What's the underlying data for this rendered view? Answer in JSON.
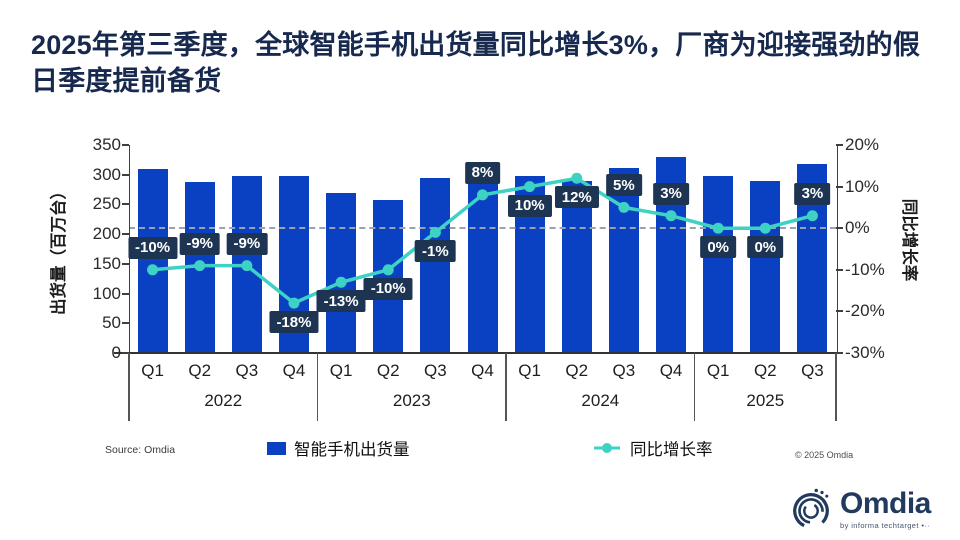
{
  "title": "2025年第三季度，全球智能手机出货量同比增长3%，厂商为迎接强劲的假日季度提前备货",
  "chart_data": {
    "type": "bar+line",
    "quarters": [
      "Q1",
      "Q2",
      "Q3",
      "Q4",
      "Q1",
      "Q2",
      "Q3",
      "Q4",
      "Q1",
      "Q2",
      "Q3",
      "Q4",
      "Q1",
      "Q2",
      "Q3"
    ],
    "year_groups": [
      {
        "label": "2022",
        "count": 4
      },
      {
        "label": "2023",
        "count": 4
      },
      {
        "label": "2024",
        "count": 4
      },
      {
        "label": "2025",
        "count": 3
      }
    ],
    "bar_series": {
      "name": "智能手机出货量",
      "unit": "百万台",
      "values": [
        310,
        287,
        297,
        297,
        270,
        258,
        295,
        321,
        297,
        289,
        311,
        330,
        297,
        289,
        318
      ],
      "color": "#0a41c2"
    },
    "line_series": {
      "name": "同比增长率",
      "values_percent": [
        -10,
        -9,
        -9,
        -18,
        -13,
        -10,
        -1,
        8,
        10,
        12,
        5,
        3,
        0,
        0,
        3
      ],
      "labels": [
        "-10%",
        "-9%",
        "-9%",
        "-18%",
        "-13%",
        "-10%",
        "-1%",
        "8%",
        "10%",
        "12%",
        "5%",
        "3%",
        "0%",
        "0%",
        "3%"
      ],
      "label_positions": [
        "above",
        "above",
        "above",
        "below",
        "below",
        "below",
        "below",
        "above",
        "below",
        "below",
        "above",
        "above",
        "below",
        "below",
        "above"
      ],
      "color": "#3ed2c4",
      "label_bg": "#1d3553"
    },
    "left_axis": {
      "label": "出货量（百万台）",
      "range": [
        0,
        350
      ],
      "ticks": [
        "350",
        "300",
        "250",
        "200",
        "150",
        "100",
        "50",
        "0"
      ]
    },
    "right_axis": {
      "label": "同比增长率",
      "range": [
        -30,
        20
      ],
      "ticks": [
        "20%",
        "10%",
        "0%",
        "-10%",
        "-20%",
        "-30%"
      ]
    },
    "zero_line_percent": 0,
    "grid": "dashed zero line only",
    "legend_position": "bottom"
  },
  "legend": {
    "bar_label": "智能手机出货量",
    "line_label": "同比增长率"
  },
  "footer": {
    "source": "Source: Omdia",
    "copyright": "© 2025 Omdia"
  },
  "logo": {
    "name": "Omdia",
    "tagline": "by informa techtarget •··"
  },
  "colors": {
    "title_navy": "#17294e",
    "bar_blue": "#0a41c2",
    "line_teal": "#3ed2c4",
    "label_box": "#1d3553"
  }
}
